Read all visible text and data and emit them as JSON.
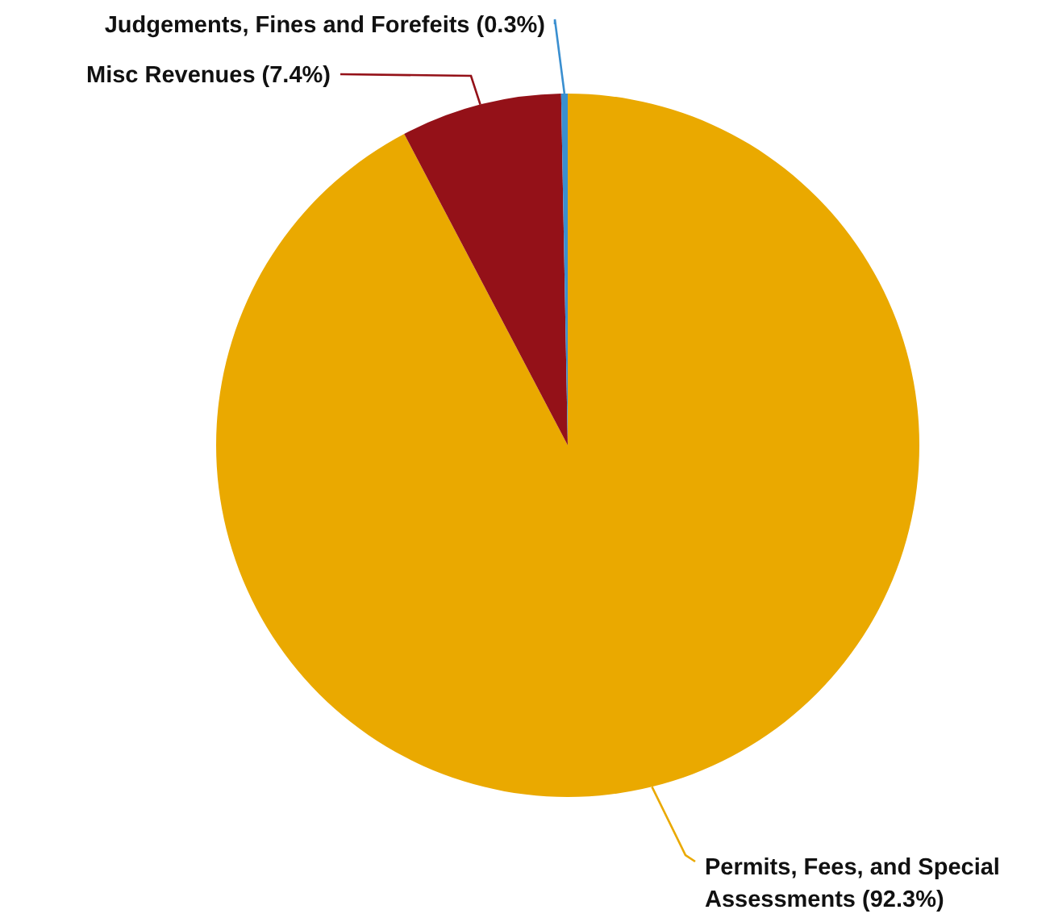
{
  "chart_data": {
    "type": "pie",
    "categories": [
      "Permits, Fees, and Special Assessments",
      "Misc Revenues",
      "Judgements, Fines and Forefeits"
    ],
    "values": [
      92.3,
      7.4,
      0.3
    ],
    "colors": [
      "#eaa900",
      "#941118",
      "#3a8fd0"
    ],
    "value_labels": [
      "(92.3%)",
      "(7.4%)",
      "(0.3%)"
    ],
    "legend": false
  }
}
